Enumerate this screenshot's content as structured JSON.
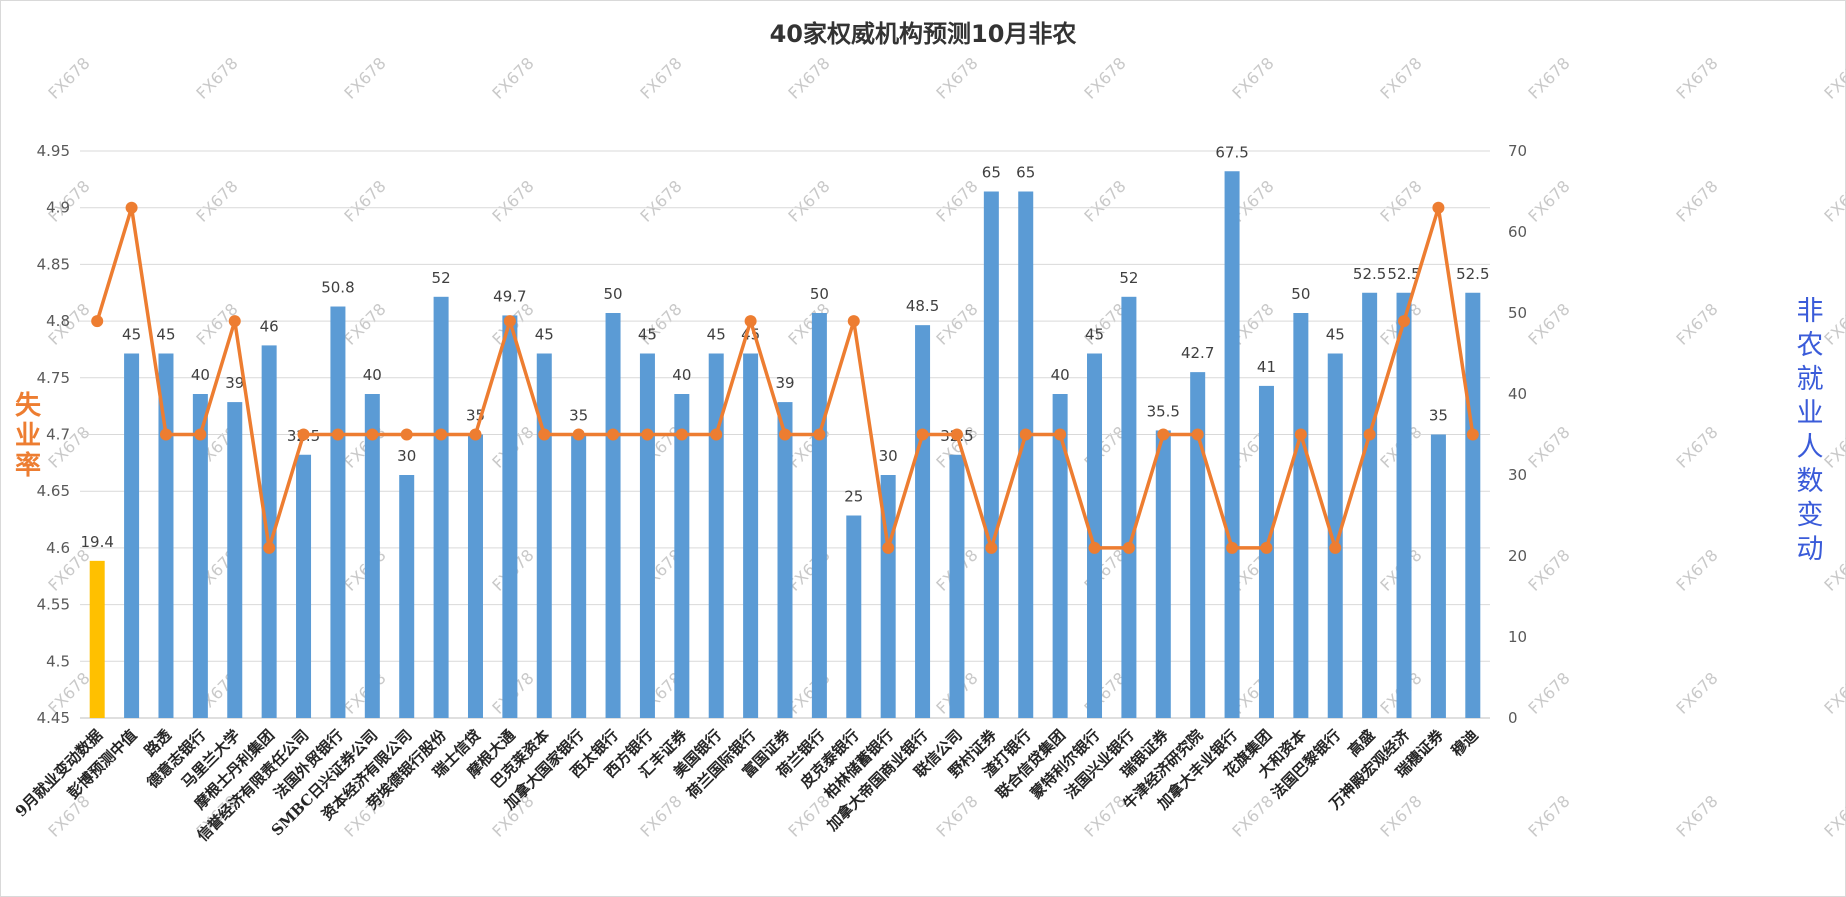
{
  "chart_data": {
    "type": "bar",
    "title": "40家权威机构预测10月非农",
    "watermark": "FX678",
    "categories": [
      "9月就业变动数据",
      "彭博预测中值",
      "路透",
      "德意志银行",
      "马里兰大学",
      "摩根士丹利集团",
      "信誉经济有限责任公司",
      "法国外贸银行",
      "SMBC日兴证券公司",
      "资本经济有限公司",
      "劳埃德银行股份",
      "瑞士信贷",
      "摩根大通",
      "巴克莱资本",
      "加拿大国家银行",
      "西太银行",
      "西方银行",
      "汇丰证券",
      "美国银行",
      "荷兰国际银行",
      "富国证券",
      "荷兰银行",
      "皮克泰银行",
      "柏林储蓄银行",
      "加拿大帝国商业银行",
      "联信公司",
      "野村证券",
      "渣打银行",
      "联合信贷集团",
      "蒙特利尔银行",
      "法国兴业银行",
      "瑞银证券",
      "牛津经济研究院",
      "加拿大丰业银行",
      "花旗集团",
      "大和资本",
      "法国巴黎银行",
      "高盛",
      "万神殿宏观经济",
      "瑞穗证券",
      "穆迪"
    ],
    "series": [
      {
        "type": "bar",
        "axis": "right",
        "values": [
          19.4,
          45,
          45,
          40,
          39,
          46,
          32.5,
          50.8,
          40,
          30,
          52,
          35,
          49.7,
          45,
          35,
          50,
          45,
          40,
          45,
          45,
          39,
          50,
          25,
          30,
          48.5,
          32.5,
          65,
          65,
          40,
          45,
          52,
          35.5,
          42.7,
          67.5,
          41,
          50,
          45,
          52.5,
          52.5,
          35,
          52.5
        ],
        "color": "#5b9bd5",
        "highlight_first_color": "#ffc000"
      },
      {
        "type": "line",
        "axis": "left",
        "values": [
          4.8,
          4.9,
          4.7,
          4.7,
          4.8,
          4.6,
          4.7,
          4.7,
          4.7,
          4.7,
          4.7,
          4.7,
          4.8,
          4.7,
          4.7,
          4.7,
          4.7,
          4.7,
          4.7,
          4.8,
          4.7,
          4.7,
          4.8,
          4.6,
          4.7,
          4.7,
          4.6,
          4.7,
          4.7,
          4.6,
          4.6,
          4.7,
          4.7,
          4.6,
          4.6,
          4.7,
          4.6,
          4.7,
          4.8,
          4.9,
          4.7
        ],
        "color": "#ed7d31"
      }
    ],
    "left_axis": {
      "label": "失业率",
      "min": 4.45,
      "max": 4.95,
      "step": 0.05,
      "ticks": [
        "4.45",
        "4.5",
        "4.55",
        "4.6",
        "4.65",
        "4.7",
        "4.75",
        "4.8",
        "4.85",
        "4.9",
        "4.95"
      ],
      "color": "#ed7d31"
    },
    "right_axis": {
      "label": "非农就业人数变动",
      "min": 0,
      "max": 70,
      "step": 10,
      "ticks": [
        "0",
        "10",
        "20",
        "30",
        "40",
        "50",
        "60",
        "70"
      ],
      "color": "#3a5bd9"
    },
    "grid": true
  }
}
